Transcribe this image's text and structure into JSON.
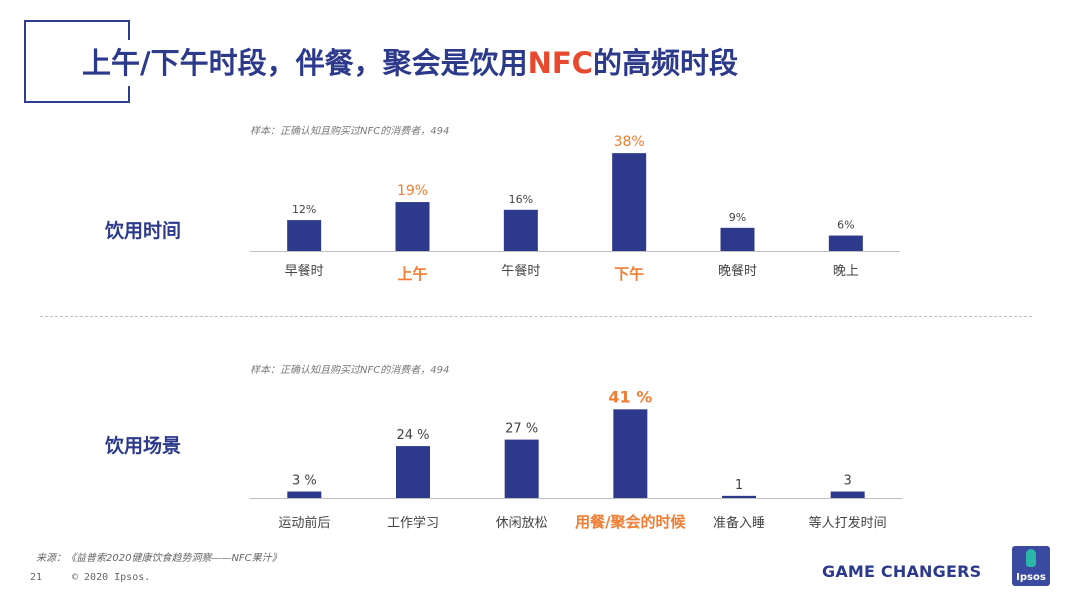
{
  "title": {
    "prefix": "上午/下午时段，伴餐，聚会是饮用",
    "highlight": "NFC",
    "suffix": "的高频时段"
  },
  "sample_note": "样本：正确认知且购买过NFC的消费者，494",
  "sections": {
    "time_label": "饮用时间",
    "scene_label": "饮用场景"
  },
  "colors": {
    "bar": "#2d3a8c",
    "highlight": "#f07d33",
    "title": "#2d3a8c",
    "title_accent": "#e8492e"
  },
  "chart_data": [
    {
      "type": "bar",
      "title": "饮用时间",
      "categories": [
        "早餐时",
        "上午",
        "午餐时",
        "下午",
        "晚餐时",
        "晚上"
      ],
      "values": [
        12,
        19,
        16,
        38,
        9,
        6
      ],
      "labels": [
        "12%",
        "19%",
        "16%",
        "38%",
        "9%",
        "6%"
      ],
      "highlighted": [
        false,
        true,
        false,
        true,
        false,
        false
      ],
      "unit": "%",
      "ylim": [
        0,
        40
      ]
    },
    {
      "type": "bar",
      "title": "饮用场景",
      "categories": [
        "运动前后",
        "工作学习",
        "休闲放松",
        "用餐/聚会的时候",
        "准备入睡",
        "等人打发时间"
      ],
      "values": [
        3,
        24,
        27,
        41,
        1,
        3
      ],
      "labels": [
        "3 %",
        "24 %",
        "27 %",
        "41 %",
        "1",
        "3"
      ],
      "highlighted": [
        false,
        false,
        false,
        true,
        false,
        false
      ],
      "unit": "%",
      "ylim": [
        0,
        43
      ]
    }
  ],
  "footer": {
    "source": "来源：《益普索2020健康饮食趋势洞察——NFC果汁》",
    "page_number": "21",
    "copyright": "© 2020 Ipsos.",
    "tagline": "GAME CHANGERS",
    "logo_text": "Ipsos"
  }
}
